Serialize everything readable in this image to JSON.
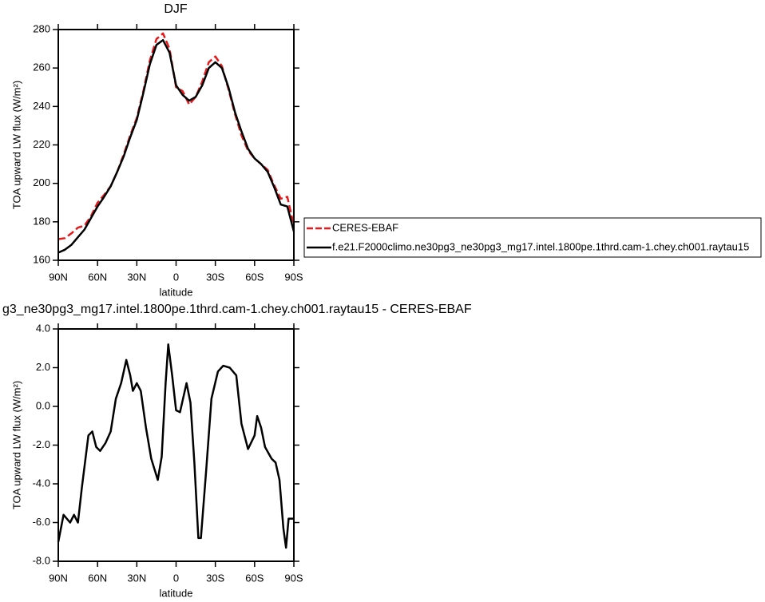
{
  "chart_data": [
    {
      "type": "line",
      "title": "DJF",
      "xlabel": "latitude",
      "ylabel": "TOA upward LW flux (W/m²)",
      "x": [
        90,
        85,
        80,
        75,
        70,
        65,
        60,
        55,
        50,
        45,
        40,
        35,
        30,
        25,
        20,
        15,
        10,
        5,
        0,
        -5,
        -10,
        -15,
        -20,
        -25,
        -30,
        -35,
        -40,
        -45,
        -50,
        -55,
        -60,
        -65,
        -70,
        -75,
        -80,
        -85,
        -90
      ],
      "series": [
        {
          "name": "CERES-EBAF",
          "color": "#e41a1c",
          "dashed": true,
          "values": [
            171,
            171.5,
            174,
            177,
            178,
            183,
            190,
            194,
            198.5,
            206,
            215,
            225,
            234,
            248,
            264,
            275,
            278,
            270,
            250,
            248,
            241,
            245,
            253,
            263,
            266,
            261,
            249,
            236,
            225,
            217,
            213,
            210,
            207,
            199,
            192,
            193,
            178
          ]
        },
        {
          "name": "f.e21.F2000climo.ne30pg3_ne30pg3_mg17.intel.1800pe.1thrd.cam-1.chey.ch001.raytau15",
          "color": "#000000",
          "dashed": false,
          "values": [
            164,
            165.5,
            168,
            172,
            176,
            182,
            188,
            193,
            198.5,
            206,
            214,
            224,
            233,
            247,
            262,
            272,
            274.5,
            268,
            251,
            246,
            243,
            245,
            251,
            260,
            263,
            260,
            250,
            237,
            227,
            218,
            213,
            210,
            206,
            198,
            189,
            188,
            175
          ]
        }
      ],
      "xlim": [
        90,
        -90
      ],
      "xticks": [
        {
          "value": 90,
          "label": "90N"
        },
        {
          "value": 60,
          "label": "60N"
        },
        {
          "value": 30,
          "label": "30N"
        },
        0,
        {
          "value": -30,
          "label": "30S"
        },
        {
          "value": -60,
          "label": "60S"
        },
        {
          "value": -90,
          "label": "90S"
        }
      ],
      "ylim": [
        160,
        280
      ],
      "yticks": [
        160,
        180,
        200,
        220,
        240,
        260,
        280
      ],
      "legend": "right"
    },
    {
      "type": "line",
      "title": "g3_ne30pg3_mg17.intel.1800pe.1thrd.cam-1.chey.ch001.raytau15 - CERES-EBAF",
      "xlabel": "latitude",
      "ylabel": "TOA upward LW flux (W/m²)",
      "x": [
        90,
        86,
        81,
        78,
        75,
        72,
        67,
        64,
        61,
        58,
        54,
        50,
        46,
        42,
        38,
        35,
        33,
        30,
        27,
        23,
        19,
        14,
        11,
        8,
        6,
        3,
        0,
        -3,
        -8,
        -11,
        -14,
        -17,
        -19,
        -23,
        -27,
        -32,
        -36,
        -41,
        -46,
        -50,
        -55,
        -60,
        -62,
        -65,
        -68,
        -73,
        -76,
        -79,
        -82,
        -84,
        -86,
        -90
      ],
      "values": [
        -7.0,
        -5.6,
        -6.0,
        -5.6,
        -6.0,
        -4.2,
        -1.5,
        -1.3,
        -2.1,
        -2.3,
        -1.9,
        -1.3,
        0.4,
        1.2,
        2.4,
        1.6,
        0.8,
        1.2,
        0.8,
        -1.1,
        -2.7,
        -3.8,
        -2.6,
        1.2,
        3.2,
        1.6,
        -0.2,
        -0.3,
        1.2,
        0.2,
        -2.9,
        -6.8,
        -6.8,
        -3.3,
        0.4,
        1.8,
        2.1,
        2.0,
        1.6,
        -0.9,
        -2.2,
        -1.5,
        -0.5,
        -1.1,
        -2.1,
        -2.7,
        -2.9,
        -3.8,
        -6.3,
        -7.3,
        -5.8,
        -5.8
      ],
      "color": "#000000",
      "xlim": [
        90,
        -90
      ],
      "xticks": [
        {
          "value": 90,
          "label": "90N"
        },
        {
          "value": 60,
          "label": "60N"
        },
        {
          "value": 30,
          "label": "30N"
        },
        0,
        {
          "value": -30,
          "label": "30S"
        },
        {
          "value": -60,
          "label": "60S"
        },
        {
          "value": -90,
          "label": "90S"
        }
      ],
      "ylim": [
        -8,
        4
      ],
      "yticks": [
        {
          "value": -8,
          "label": "-8.0"
        },
        {
          "value": -6,
          "label": "-6.0"
        },
        {
          "value": -4,
          "label": "-4.0"
        },
        {
          "value": -2,
          "label": "-2.0"
        },
        {
          "value": 0,
          "label": "0.0"
        },
        {
          "value": 2,
          "label": "2.0"
        },
        {
          "value": 4,
          "label": "4.0"
        }
      ]
    }
  ]
}
